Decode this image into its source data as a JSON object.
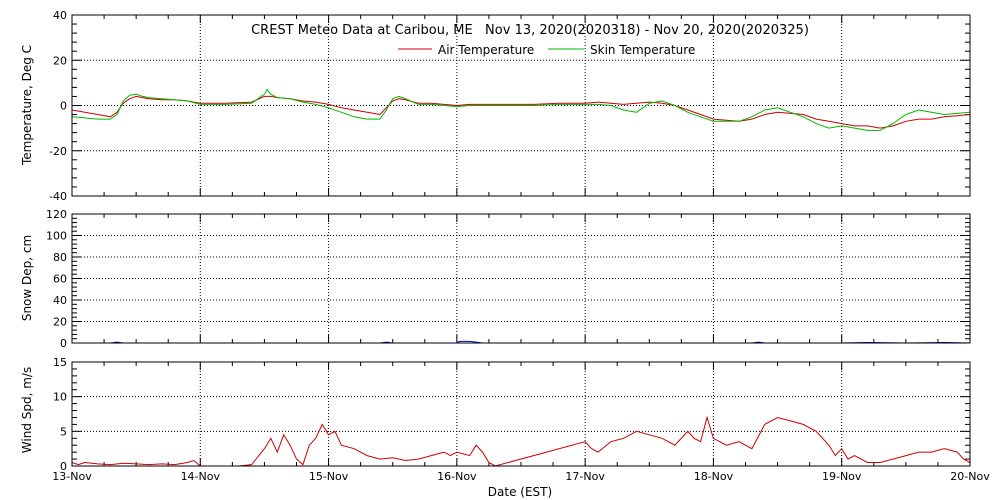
{
  "chart_data": [
    {
      "type": "line",
      "title": "CREST Meteo Data at Caribou, ME   Nov 13, 2020(2020318) - Nov 20, 2020(2020325)",
      "ylabel": "Temperature, Deg C",
      "ylim": [
        -40,
        40
      ],
      "yticks": [
        "40",
        "20",
        "0",
        "-20",
        "-40"
      ],
      "grid": true,
      "legend": "top-center",
      "series": [
        {
          "name": "Air Temperature",
          "color": "#cc0000",
          "x": [
            13.0,
            13.1,
            13.2,
            13.3,
            13.35,
            13.4,
            13.45,
            13.5,
            13.55,
            13.6,
            13.7,
            13.8,
            13.9,
            14.0,
            14.2,
            14.4,
            14.5,
            14.55,
            14.6,
            14.7,
            14.8,
            14.9,
            15.0,
            15.1,
            15.2,
            15.3,
            15.4,
            15.45,
            15.5,
            15.55,
            15.6,
            15.7,
            15.8,
            15.9,
            16.0,
            16.1,
            16.2,
            16.4,
            16.6,
            16.8,
            17.0,
            17.1,
            17.2,
            17.3,
            17.4,
            17.5,
            17.6,
            17.7,
            17.8,
            17.9,
            18.0,
            18.1,
            18.2,
            18.3,
            18.4,
            18.5,
            18.6,
            18.7,
            18.8,
            18.9,
            19.0,
            19.1,
            19.2,
            19.3,
            19.4,
            19.5,
            19.6,
            19.7,
            19.8,
            19.9,
            20.0
          ],
          "y": [
            -2,
            -3,
            -4,
            -5,
            -3,
            1,
            3,
            4,
            3.5,
            3,
            2.5,
            2.5,
            2,
            1,
            1,
            1.5,
            4,
            4,
            3.5,
            3,
            2,
            1.5,
            0.5,
            -1,
            -2,
            -3,
            -4,
            -1,
            2,
            3,
            2.5,
            1,
            1,
            0.5,
            0,
            0.5,
            0.5,
            0.5,
            0.5,
            1,
            1,
            1.5,
            1,
            0.5,
            1,
            1.5,
            1,
            0,
            -2,
            -4,
            -6,
            -6.5,
            -7,
            -6,
            -4,
            -3,
            -3.5,
            -4,
            -6,
            -7,
            -8,
            -9,
            -9,
            -10,
            -9,
            -7,
            -6,
            -6,
            -5,
            -4.5,
            -4
          ]
        },
        {
          "name": "Skin Temperature",
          "color": "#00b800",
          "x": [
            13.0,
            13.1,
            13.2,
            13.3,
            13.35,
            13.4,
            13.45,
            13.5,
            13.55,
            13.6,
            13.7,
            13.8,
            13.9,
            14.0,
            14.2,
            14.4,
            14.5,
            14.52,
            14.55,
            14.6,
            14.7,
            14.8,
            14.9,
            15.0,
            15.1,
            15.2,
            15.3,
            15.4,
            15.45,
            15.5,
            15.55,
            15.6,
            15.7,
            15.8,
            15.9,
            16.0,
            16.1,
            16.2,
            16.4,
            16.6,
            16.8,
            17.0,
            17.1,
            17.2,
            17.3,
            17.4,
            17.5,
            17.6,
            17.7,
            17.8,
            17.9,
            18.0,
            18.1,
            18.2,
            18.3,
            18.4,
            18.5,
            18.6,
            18.7,
            18.8,
            18.9,
            19.0,
            19.1,
            19.2,
            19.3,
            19.4,
            19.5,
            19.6,
            19.7,
            19.8,
            19.9,
            20.0
          ],
          "y": [
            -5,
            -5.5,
            -6,
            -6,
            -4,
            2,
            4.5,
            5,
            4,
            3.5,
            3,
            2.5,
            2,
            0.5,
            0.5,
            1,
            5,
            7,
            5,
            3.5,
            3,
            1.5,
            0.5,
            -1,
            -3,
            -5,
            -6,
            -6,
            -2,
            3,
            4,
            3,
            0.5,
            0.5,
            0,
            -0.5,
            0,
            0,
            0,
            0,
            0.5,
            0.5,
            0.5,
            0,
            -2,
            -3,
            1,
            2,
            0,
            -3,
            -5,
            -7,
            -7,
            -7,
            -5,
            -2,
            -1,
            -3,
            -5,
            -8,
            -10,
            -9,
            -10,
            -11,
            -11,
            -8,
            -4,
            -2,
            -3,
            -4,
            -3.5,
            -3
          ]
        }
      ]
    },
    {
      "type": "line",
      "ylabel": "Snow Dep, cm",
      "ylim": [
        0,
        120
      ],
      "yticks": [
        "0",
        "20",
        "40",
        "60",
        "80",
        "100",
        "120"
      ],
      "grid": true,
      "series": [
        {
          "color": "#0000cc",
          "x": [
            13.0,
            13.3,
            13.35,
            13.4,
            14.5,
            15.4,
            15.45,
            15.5,
            16.0,
            16.02,
            16.1,
            16.15,
            16.2,
            17.0,
            17.5,
            18.0,
            18.3,
            18.35,
            18.4,
            19.0,
            19.2,
            19.5,
            19.8,
            20.0
          ],
          "y": [
            0,
            0,
            0.8,
            0,
            0,
            0,
            0.8,
            0,
            0,
            1.5,
            1.5,
            0.8,
            0,
            0,
            0,
            0,
            0,
            0.8,
            0,
            0,
            0.5,
            0,
            0.5,
            0
          ]
        }
      ]
    },
    {
      "type": "line",
      "ylabel": "Wind Spd, m/s",
      "xlabel": "Date (EST)",
      "ylim": [
        0,
        15
      ],
      "yticks": [
        "0",
        "5",
        "10",
        "15"
      ],
      "xticks": [
        "13-Nov",
        "14-Nov",
        "15-Nov",
        "16-Nov",
        "17-Nov",
        "18-Nov",
        "19-Nov",
        "20-Nov"
      ],
      "grid": true,
      "series": [
        {
          "color": "#cc0000",
          "x": [
            13.0,
            13.05,
            13.1,
            13.2,
            13.3,
            13.4,
            13.5,
            13.6,
            13.7,
            13.8,
            13.9,
            13.95,
            14.0,
            14.2,
            14.3,
            14.4,
            14.5,
            14.55,
            14.6,
            14.65,
            14.7,
            14.75,
            14.8,
            14.85,
            14.9,
            14.95,
            15.0,
            15.05,
            15.1,
            15.2,
            15.3,
            15.4,
            15.5,
            15.6,
            15.7,
            15.8,
            15.9,
            15.95,
            16.0,
            16.1,
            16.15,
            16.2,
            16.25,
            16.3,
            17.0,
            17.05,
            17.1,
            17.2,
            17.3,
            17.4,
            17.5,
            17.6,
            17.7,
            17.8,
            17.85,
            17.9,
            17.95,
            18.0,
            18.1,
            18.2,
            18.3,
            18.4,
            18.5,
            18.6,
            18.7,
            18.8,
            18.9,
            18.95,
            19.0,
            19.05,
            19.1,
            19.2,
            19.3,
            19.4,
            19.5,
            19.6,
            19.7,
            19.8,
            19.9,
            19.95,
            20.0
          ],
          "y": [
            0.5,
            0.2,
            0.5,
            0.3,
            0.2,
            0.4,
            0.3,
            0.2,
            0.3,
            0.2,
            0.5,
            0.8,
            0,
            0,
            0,
            0.2,
            2.5,
            4,
            2,
            4.5,
            3,
            1,
            0.2,
            3,
            4,
            6,
            4.5,
            5,
            3,
            2.5,
            1.5,
            1,
            1.2,
            0.8,
            1,
            1.5,
            2,
            1.5,
            2,
            1.5,
            3,
            2,
            0.5,
            0,
            3.5,
            2.5,
            2,
            3.5,
            4,
            5,
            4.5,
            4,
            3,
            5,
            4,
            3.5,
            7,
            4,
            3,
            3.5,
            2.5,
            6,
            7,
            6.5,
            6,
            5,
            3,
            1.5,
            2.5,
            1,
            1.5,
            0.5,
            0.5,
            1,
            1.5,
            2,
            2,
            2.5,
            2,
            1,
            0.5
          ]
        }
      ]
    }
  ]
}
